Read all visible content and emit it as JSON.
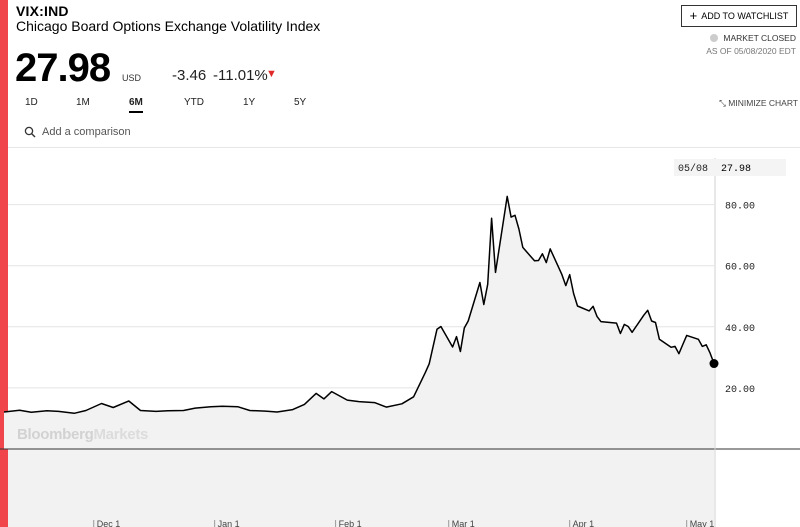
{
  "header": {
    "ticker": "VIX:IND",
    "name": "Chicago Board Options Exchange Volatility Index",
    "price": "27.98",
    "currency": "USD",
    "change": "-3.46",
    "change_pct": "-11.01%",
    "direction_icon": "down-triangle-icon",
    "watchlist_label": "ADD TO WATCHLIST",
    "market_status": "MARKET CLOSED",
    "as_of": "AS OF 05/08/2020 EDT"
  },
  "ranges": {
    "items": [
      "1D",
      "1M",
      "6M",
      "YTD",
      "1Y",
      "5Y"
    ],
    "active": "6M"
  },
  "minimize_label": "MINIMIZE CHART",
  "search": {
    "placeholder": "Add a comparison",
    "value": ""
  },
  "watermark": {
    "part1": "Bloomberg",
    "part2": "Markets"
  },
  "colors": {
    "accent": "#f0454b",
    "line": "#000000",
    "area_fill": "#f2f2f2",
    "grid": "#e4e4e4",
    "down": "#e02a2a"
  },
  "chart_data": {
    "type": "area",
    "ylim": [
      0,
      100
    ],
    "yticks": [
      "20.00",
      "40.00",
      "60.00",
      "80.00"
    ],
    "xticks": [
      "Dec 1",
      "Jan 1",
      "Feb 1",
      "Mar 1",
      "Apr 1",
      "May 1"
    ],
    "last_point_label": {
      "date": "05/08",
      "value": "27.98"
    },
    "grid": true,
    "series": [
      {
        "values": [
          [
            "2019-11-08",
            12.1
          ],
          [
            "2019-11-12",
            12.7
          ],
          [
            "2019-11-15",
            12.0
          ],
          [
            "2019-11-19",
            12.5
          ],
          [
            "2019-11-22",
            12.3
          ],
          [
            "2019-11-26",
            11.7
          ],
          [
            "2019-11-29",
            12.6
          ],
          [
            "2019-12-03",
            14.9
          ],
          [
            "2019-12-06",
            13.6
          ],
          [
            "2019-12-10",
            15.7
          ],
          [
            "2019-12-13",
            12.6
          ],
          [
            "2019-12-17",
            12.3
          ],
          [
            "2019-12-20",
            12.5
          ],
          [
            "2019-12-24",
            12.6
          ],
          [
            "2019-12-27",
            13.4
          ],
          [
            "2019-12-31",
            13.8
          ],
          [
            "2020-01-03",
            14.0
          ],
          [
            "2020-01-07",
            13.8
          ],
          [
            "2020-01-10",
            12.6
          ],
          [
            "2020-01-14",
            12.4
          ],
          [
            "2020-01-17",
            12.1
          ],
          [
            "2020-01-21",
            12.9
          ],
          [
            "2020-01-24",
            14.6
          ],
          [
            "2020-01-27",
            18.2
          ],
          [
            "2020-01-29",
            16.4
          ],
          [
            "2020-01-31",
            18.8
          ],
          [
            "2020-02-04",
            16.0
          ],
          [
            "2020-02-07",
            15.5
          ],
          [
            "2020-02-11",
            15.2
          ],
          [
            "2020-02-14",
            13.7
          ],
          [
            "2020-02-18",
            14.8
          ],
          [
            "2020-02-21",
            17.1
          ],
          [
            "2020-02-24",
            25.0
          ],
          [
            "2020-02-25",
            27.9
          ],
          [
            "2020-02-27",
            39.2
          ],
          [
            "2020-02-28",
            40.1
          ],
          [
            "2020-03-02",
            33.4
          ],
          [
            "2020-03-03",
            36.8
          ],
          [
            "2020-03-04",
            31.9
          ],
          [
            "2020-03-05",
            39.6
          ],
          [
            "2020-03-06",
            41.9
          ],
          [
            "2020-03-09",
            54.5
          ],
          [
            "2020-03-10",
            47.3
          ],
          [
            "2020-03-11",
            53.9
          ],
          [
            "2020-03-12",
            75.5
          ],
          [
            "2020-03-13",
            57.8
          ],
          [
            "2020-03-16",
            82.7
          ],
          [
            "2020-03-17",
            75.9
          ],
          [
            "2020-03-18",
            76.5
          ],
          [
            "2020-03-19",
            72.0
          ],
          [
            "2020-03-20",
            66.0
          ],
          [
            "2020-03-23",
            61.6
          ],
          [
            "2020-03-24",
            61.7
          ],
          [
            "2020-03-25",
            63.9
          ],
          [
            "2020-03-26",
            61.0
          ],
          [
            "2020-03-27",
            65.5
          ],
          [
            "2020-03-30",
            57.1
          ],
          [
            "2020-03-31",
            53.5
          ],
          [
            "2020-04-01",
            57.1
          ],
          [
            "2020-04-02",
            50.9
          ],
          [
            "2020-04-03",
            46.8
          ],
          [
            "2020-04-06",
            45.2
          ],
          [
            "2020-04-07",
            46.7
          ],
          [
            "2020-04-08",
            43.4
          ],
          [
            "2020-04-09",
            41.7
          ],
          [
            "2020-04-13",
            41.2
          ],
          [
            "2020-04-14",
            37.8
          ],
          [
            "2020-04-15",
            40.8
          ],
          [
            "2020-04-16",
            40.1
          ],
          [
            "2020-04-17",
            38.2
          ],
          [
            "2020-04-20",
            43.8
          ],
          [
            "2020-04-21",
            45.4
          ],
          [
            "2020-04-22",
            41.9
          ],
          [
            "2020-04-23",
            41.4
          ],
          [
            "2020-04-24",
            35.9
          ],
          [
            "2020-04-27",
            33.3
          ],
          [
            "2020-04-28",
            33.6
          ],
          [
            "2020-04-29",
            31.2
          ],
          [
            "2020-04-30",
            34.2
          ],
          [
            "2020-05-01",
            37.2
          ],
          [
            "2020-05-04",
            35.9
          ],
          [
            "2020-05-05",
            33.6
          ],
          [
            "2020-05-06",
            34.1
          ],
          [
            "2020-05-07",
            31.4
          ],
          [
            "2020-05-08",
            27.98
          ]
        ]
      }
    ]
  }
}
